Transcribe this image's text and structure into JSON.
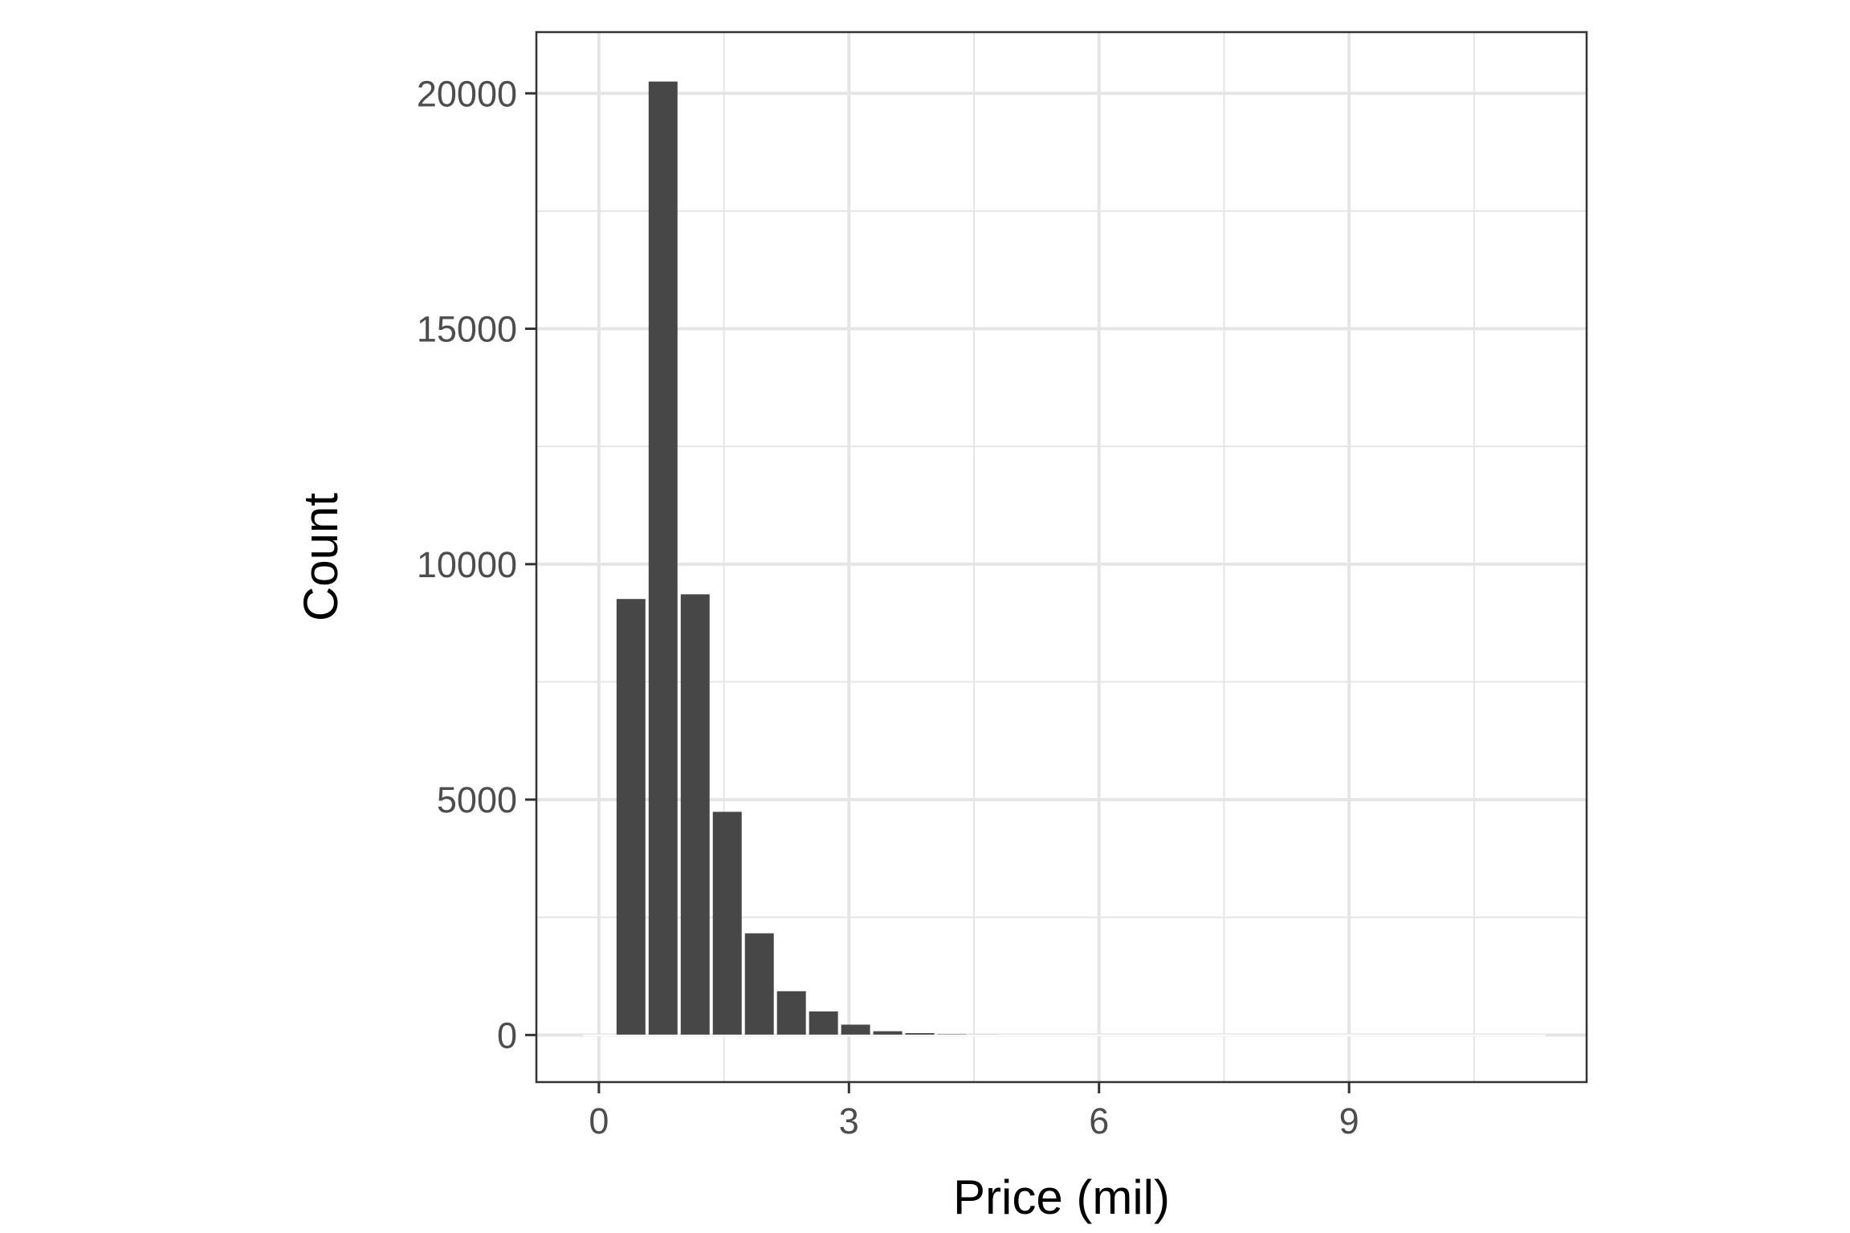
{
  "chart_data": {
    "type": "bar",
    "title": "",
    "xlabel": "Price (mil)",
    "ylabel": "Count",
    "x": [
      0.0,
      0.385,
      0.77,
      1.155,
      1.54,
      1.925,
      2.31,
      2.695,
      3.08,
      3.465,
      3.85,
      4.235,
      4.62,
      5.005,
      5.39,
      5.775,
      6.16,
      6.545,
      6.93,
      7.315,
      7.7,
      8.085,
      8.47,
      8.855,
      9.24,
      9.625,
      10.01,
      10.395,
      10.78,
      11.165
    ],
    "values": [
      0,
      9260,
      20250,
      9360,
      4740,
      2160,
      930,
      500,
      220,
      80,
      40,
      15,
      8,
      5,
      3,
      2,
      1,
      1,
      1,
      1,
      1,
      0,
      0,
      0,
      1,
      0,
      0,
      0,
      0,
      1
    ],
    "bin_width": 0.385,
    "xlim": [
      -0.75,
      11.85
    ],
    "ylim": [
      -1000,
      21300
    ],
    "x_ticks": [
      "0",
      "3",
      "6",
      "9"
    ],
    "y_ticks": [
      "0",
      "5000",
      "10000",
      "15000",
      "20000"
    ],
    "grid": true,
    "legend": "none",
    "colors": {
      "bar": "#474747",
      "grid": "#e5e5e5",
      "panel_border": "#333333",
      "background": "#ffffff"
    }
  }
}
